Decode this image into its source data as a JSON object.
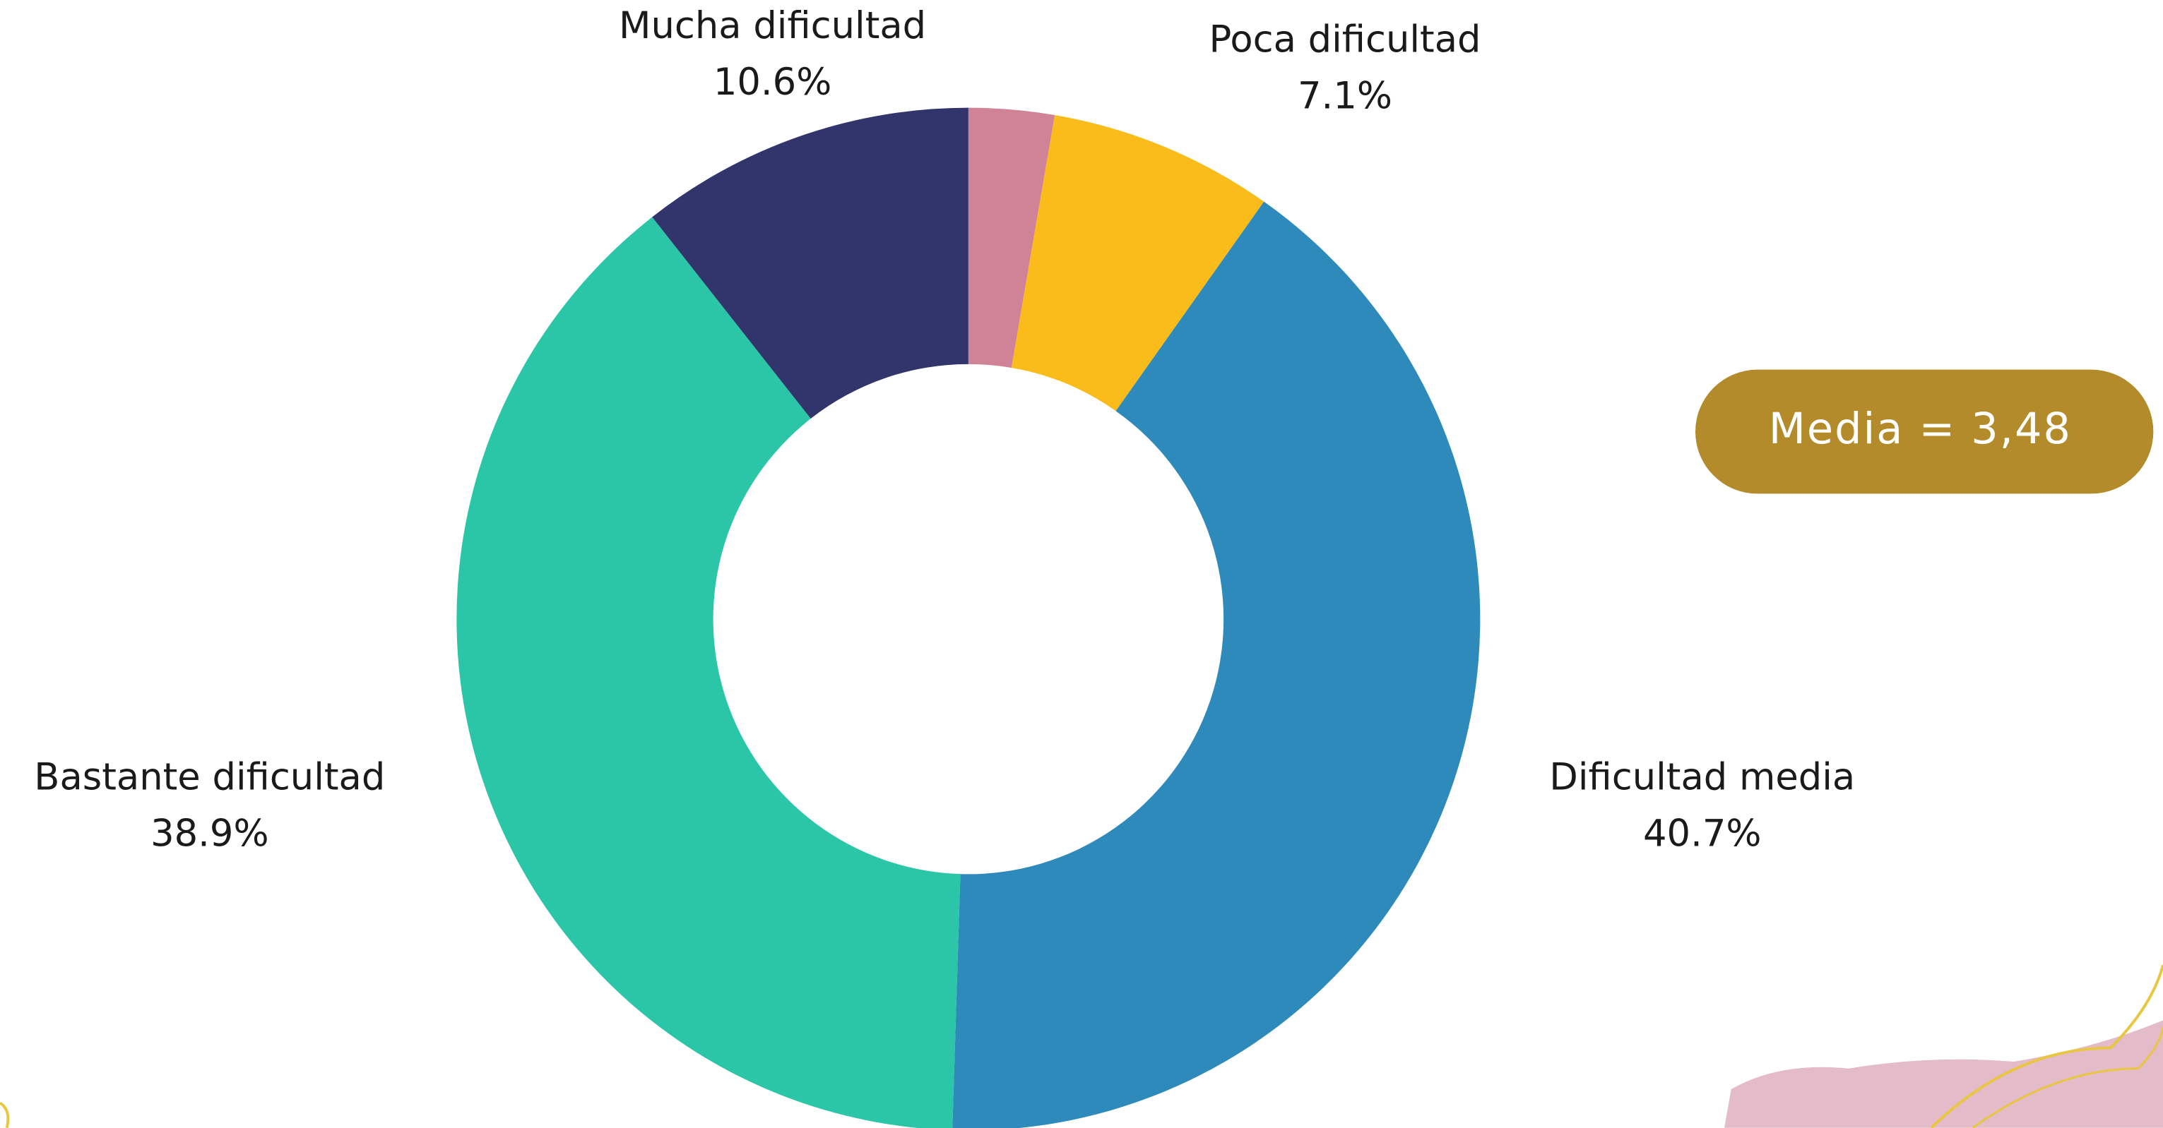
{
  "chart_data": {
    "type": "donut",
    "categories": [
      null,
      "Poca dificultad",
      "Dificultad media",
      "Bastante dificultad",
      "Mucha dificultad"
    ],
    "values": [
      2.7,
      7.1,
      40.7,
      38.9,
      10.6
    ],
    "value_labels": [
      null,
      "7.1%",
      "40.7%",
      "38.9%",
      "10.6%"
    ],
    "colors": [
      "#d08396",
      "#f9bc1a",
      "#2d8aba",
      "#2bc6a8",
      "#31356b"
    ],
    "annotation": "Media = 3,48"
  }
}
